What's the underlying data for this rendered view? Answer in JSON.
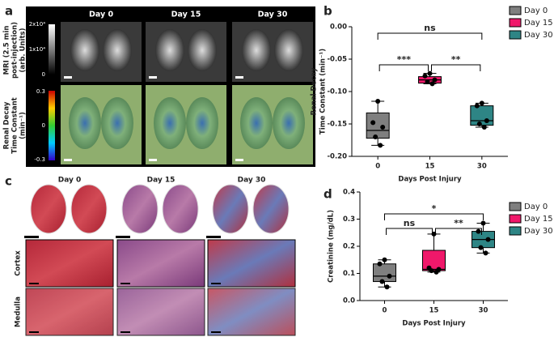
{
  "panel_labels": [
    "a",
    "b",
    "c",
    "d"
  ],
  "panel_a": {
    "columns": [
      "Day 0",
      "Day 15",
      "Day 30"
    ],
    "row_labels": [
      [
        "MRI (2.5 min",
        "post-injection)",
        "(arb. Units)"
      ],
      [
        "Renal Decay",
        "Time Constant",
        "(min⁻¹)"
      ]
    ],
    "colorbar_mri": [
      "2x10⁴",
      "1x10⁴",
      "0"
    ],
    "colorbar_decay": [
      "0.3",
      "0",
      "-0.3"
    ]
  },
  "panel_c": {
    "columns": [
      "Day 0",
      "Day 15",
      "Day 30"
    ],
    "rows": [
      "Cortex",
      "Medulla"
    ]
  },
  "chart_data": [
    {
      "type": "box",
      "ylabel": [
        "Renal Decay",
        "Time Constant (min⁻¹)"
      ],
      "xlabel": "Days Post Injury",
      "categories": [
        "0",
        "15",
        "30"
      ],
      "ylim": [
        -0.2,
        0
      ],
      "yticks": [
        {
          "value": -0.2,
          "label": "-0.20"
        },
        {
          "value": -0.15,
          "label": "-0.15"
        },
        {
          "value": -0.1,
          "label": "-0.10"
        },
        {
          "value": -0.05,
          "label": "-0.05"
        },
        {
          "value": 0,
          "label": "0.00"
        }
      ],
      "series": [
        {
          "name": "Day 0",
          "color": "#7f7f7f",
          "min": -0.183,
          "q1": -0.172,
          "median": -0.16,
          "q3": -0.133,
          "max": -0.115,
          "points": [
            -0.115,
            -0.148,
            -0.155,
            -0.17,
            -0.183
          ]
        },
        {
          "name": "Day 15",
          "color": "#f0186a",
          "min": -0.088,
          "q1": -0.087,
          "median": -0.082,
          "q3": -0.077,
          "max": -0.072,
          "points": [
            -0.072,
            -0.076,
            -0.082,
            -0.085,
            -0.088
          ]
        },
        {
          "name": "Day 30",
          "color": "#2e8585",
          "min": -0.155,
          "q1": -0.152,
          "median": -0.145,
          "q3": -0.122,
          "max": -0.118,
          "points": [
            -0.118,
            -0.122,
            -0.145,
            -0.15,
            -0.155
          ]
        }
      ],
      "annotations": [
        {
          "text": "ns",
          "from": "0",
          "to": "30"
        },
        {
          "text": "***",
          "from": "0",
          "to": "15"
        },
        {
          "text": "**",
          "from": "15",
          "to": "30"
        }
      ]
    },
    {
      "type": "box",
      "ylabel": [
        "Creatinine (mg/dL)"
      ],
      "xlabel": "Days Post Injury",
      "categories": [
        "0",
        "15",
        "30"
      ],
      "ylim": [
        0,
        0.4
      ],
      "yticks": [
        {
          "value": 0,
          "label": "0.0"
        },
        0.1,
        0.2,
        0.3,
        0.4
      ],
      "series": [
        {
          "name": "Day 0",
          "color": "#7f7f7f",
          "min": 0.05,
          "q1": 0.07,
          "median": 0.09,
          "q3": 0.135,
          "max": 0.15,
          "points": [
            0.15,
            0.135,
            0.09,
            0.07,
            0.05
          ]
        },
        {
          "name": "Day 15",
          "color": "#f0186a",
          "min": 0.105,
          "q1": 0.11,
          "median": 0.115,
          "q3": 0.185,
          "max": 0.245,
          "points": [
            0.245,
            0.12,
            0.115,
            0.11,
            0.105
          ]
        },
        {
          "name": "Day 30",
          "color": "#2e8585",
          "min": 0.175,
          "q1": 0.195,
          "median": 0.225,
          "q3": 0.255,
          "max": 0.285,
          "points": [
            0.285,
            0.255,
            0.225,
            0.195,
            0.175
          ]
        }
      ],
      "annotations": [
        {
          "text": "*",
          "from": "0",
          "to": "30"
        },
        {
          "text": "ns",
          "from": "0",
          "to": "15"
        },
        {
          "text": "**",
          "from": "15",
          "to": "30"
        }
      ]
    }
  ]
}
